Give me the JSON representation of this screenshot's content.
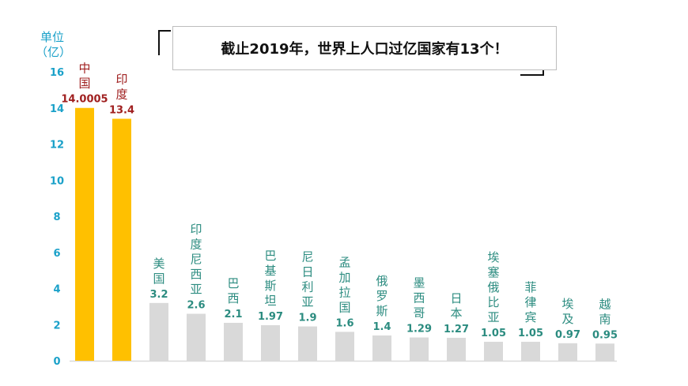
{
  "title": "截止2019年，世界上人口过亿国家有13个！",
  "colors": {
    "highlight": "#FFC000",
    "normal": "#D9D9D9",
    "axis": "#1BA1C9",
    "highlight_text": "#A02020",
    "normal_text": "#2C8C80"
  },
  "chart_data": {
    "type": "bar",
    "ylabel": [
      "单位",
      "（亿）"
    ],
    "ylim": [
      0,
      16
    ],
    "yticks": [
      "0",
      "2",
      "4",
      "6",
      "8",
      "10",
      "12",
      "14",
      "16"
    ],
    "grid": false,
    "categories": [
      "中国",
      "印度",
      "美国",
      "印度尼西亚",
      "巴西",
      "巴基斯坦",
      "尼日利亚",
      "孟加拉国",
      "俄罗斯",
      "墨西哥",
      "日本",
      "埃塞俄比亚",
      "菲律宾",
      "埃及",
      "越南"
    ],
    "values": [
      14.0005,
      13.4,
      3.2,
      2.6,
      2.1,
      1.97,
      1.9,
      1.6,
      1.4,
      1.29,
      1.27,
      1.05,
      1.05,
      0.97,
      0.95
    ],
    "value_labels": [
      "14.0005",
      "13.4",
      "3.2",
      "2.6",
      "2.1",
      "1.97",
      "1.9",
      "1.6",
      "1.4",
      "1.29",
      "1.27",
      "1.05",
      "1.05",
      "0.97",
      "0.95"
    ],
    "highlighted": [
      "中国",
      "印度"
    ]
  }
}
